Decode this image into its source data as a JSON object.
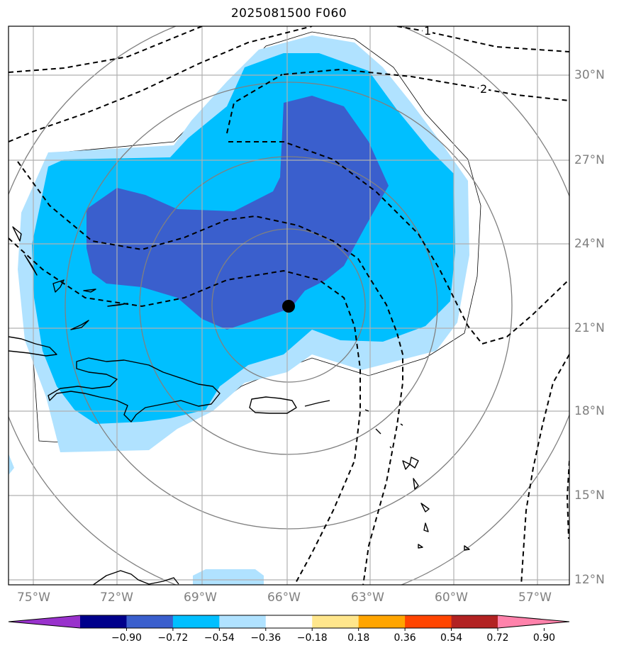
{
  "title": "2025081500 F060",
  "map": {
    "lon_labels": [
      "75°W",
      "72°W",
      "69°W",
      "66°W",
      "63°W",
      "60°W",
      "57°W"
    ],
    "lat_labels": [
      "30°N",
      "27°N",
      "24°N",
      "21°N",
      "18°N",
      "15°N",
      "12°N"
    ],
    "contour_labels": [
      "1",
      "2"
    ],
    "center_marker": {
      "lon": -65.9,
      "lat": 21.8
    }
  },
  "colorbar": {
    "tick_labels": [
      "−0.90",
      "−0.72",
      "−0.54",
      "−0.36",
      "−0.18",
      "0.18",
      "0.36",
      "0.54",
      "0.72",
      "0.90"
    ],
    "colors": [
      "#9932cc",
      "#00008b",
      "#3a5fcd",
      "#00bfff",
      "#b0e2ff",
      "#ffffff",
      "#ffe68c",
      "#ffa500",
      "#ff4500",
      "#b22222",
      "#ff82ab"
    ]
  },
  "legend_colors": {
    "light_blue": "#b0e2ff",
    "deep_sky": "#00bfff",
    "royal_blue": "#3a5fcd"
  }
}
